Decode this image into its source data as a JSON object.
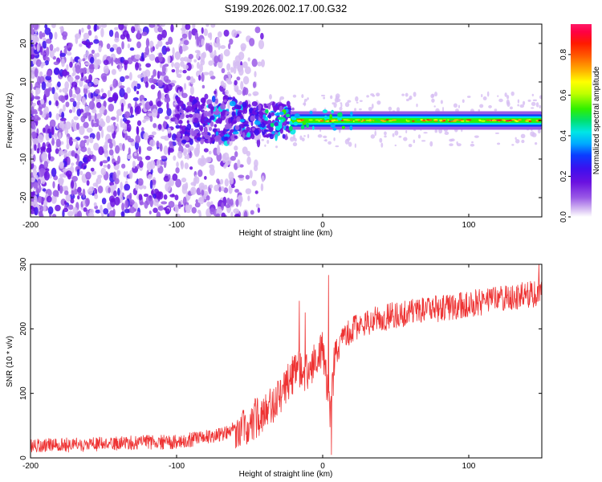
{
  "chart_data": [
    {
      "type": "heatmap",
      "title": "S199.2026.002.17.00.G32",
      "xlabel": "Height of straight line (km)",
      "ylabel": "Frequency (Hz)",
      "xlim": [
        -200,
        150
      ],
      "ylim": [
        -25,
        25
      ],
      "xticks": [
        -200,
        -100,
        0,
        100
      ],
      "xtick_labels": [
        "-200",
        "-100",
        "0",
        "100"
      ],
      "yticks": [
        -20,
        -10,
        0,
        10,
        20
      ],
      "ytick_labels": [
        "-20",
        "-10",
        "0",
        "10",
        "20"
      ],
      "colorbar": {
        "label": "Normalized spectral amplitude",
        "range": [
          0.0,
          0.95
        ],
        "ticks": [
          0.0,
          0.2,
          0.4,
          0.6,
          0.8
        ],
        "tick_labels": [
          "0.0",
          "0.2",
          "0.4",
          "0.6",
          "0.8"
        ],
        "colormap": [
          "#ffffff",
          "#d6bdf2",
          "#9a5ae6",
          "#6a11e0",
          "#3d10ee",
          "#0a3cff",
          "#00aaff",
          "#00e6e6",
          "#00e070",
          "#30f000",
          "#c0ff00",
          "#ffff00",
          "#ffb000",
          "#ff6000",
          "#ff1a00",
          "#ff0044",
          "#ff1a66"
        ]
      },
      "description_values": {
        "signal_line_frequency_hz": 0,
        "signal_start_km": -20,
        "noise_region_km": [
          -200,
          -60
        ]
      }
    },
    {
      "type": "line",
      "xlabel": "Height of straight line (km)",
      "ylabel": "SNR (10 * v/v)",
      "xlim": [
        -200,
        150
      ],
      "ylim": [
        0,
        300
      ],
      "xticks": [
        -200,
        -100,
        0,
        100
      ],
      "xtick_labels": [
        "-200",
        "-100",
        "0",
        "100"
      ],
      "yticks": [
        0,
        100,
        200,
        300
      ],
      "ytick_labels": [
        "0",
        "100",
        "200",
        "300"
      ],
      "color": "#ee3333",
      "trend": {
        "x": [
          -200,
          -150,
          -100,
          -70,
          -50,
          -35,
          -25,
          -15,
          -10,
          -5,
          0,
          3,
          5,
          8,
          12,
          20,
          30,
          50,
          80,
          110,
          150
        ],
        "y": [
          18,
          22,
          25,
          35,
          55,
          80,
          115,
          140,
          130,
          160,
          170,
          110,
          60,
          150,
          180,
          200,
          210,
          222,
          232,
          242,
          256
        ]
      },
      "spikes": [
        {
          "x": -16,
          "y": 243
        },
        {
          "x": -12,
          "y": 225
        },
        {
          "x": 4,
          "y": 283
        },
        {
          "x": 6,
          "y": 5
        },
        {
          "x": 148,
          "y": 300
        }
      ]
    }
  ]
}
